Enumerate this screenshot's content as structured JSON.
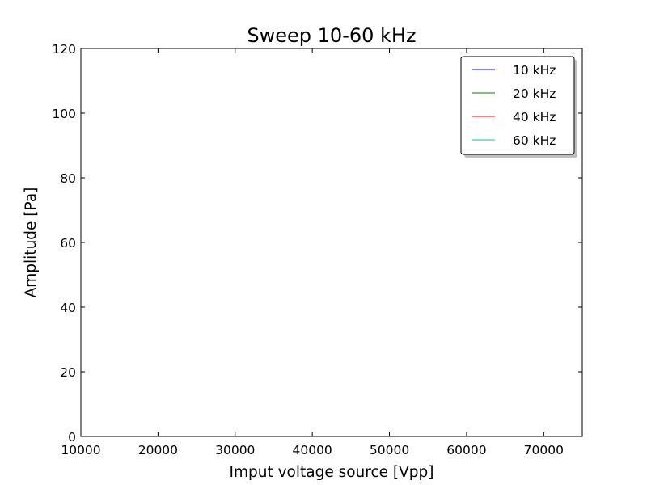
{
  "chart_data": {
    "type": "line",
    "title": "Sweep 10-60 kHz",
    "xlabel": "Imput voltage source [Vpp]",
    "ylabel": "Amplitude [Pa]",
    "xlim": [
      10000,
      75000
    ],
    "ylim": [
      0,
      120
    ],
    "xticks": [
      10000,
      20000,
      30000,
      40000,
      50000,
      60000,
      70000
    ],
    "yticks": [
      0,
      20,
      40,
      60,
      80,
      100,
      120
    ],
    "grid": false,
    "legend_position": "upper right",
    "series": [
      {
        "name": "10 kHz",
        "color": "#0000ff",
        "x": [],
        "y": []
      },
      {
        "name": "20 kHz",
        "color": "#008000",
        "x": [],
        "y": []
      },
      {
        "name": "40 kHz",
        "color": "#ff0000",
        "x": [],
        "y": []
      },
      {
        "name": "60 kHz",
        "color": "#00bfbf",
        "x": [],
        "y": []
      }
    ]
  }
}
